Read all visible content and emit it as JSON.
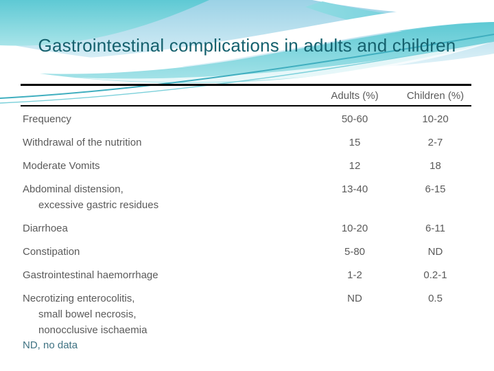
{
  "slide": {
    "title": "Gastrointestinal complications in adults and children",
    "footnote": "ND, no data"
  },
  "table": {
    "columns": [
      "Adults (%)",
      "Children (%)"
    ],
    "rows": [
      {
        "lines": [
          "Frequency"
        ],
        "adults": "50-60",
        "children": "10-20"
      },
      {
        "lines": [
          "Withdrawal of the nutrition"
        ],
        "adults": "15",
        "children": "2-7"
      },
      {
        "lines": [
          "Moderate Vomits"
        ],
        "adults": "12",
        "children": "18"
      },
      {
        "lines": [
          "Abdominal distension,",
          "excessive gastric residues"
        ],
        "adults": "13-40",
        "children": "6-15"
      },
      {
        "lines": [
          "Diarrhoea"
        ],
        "adults": "10-20",
        "children": "6-11"
      },
      {
        "lines": [
          "Constipation"
        ],
        "adults": "5-80",
        "children": "ND"
      },
      {
        "lines": [
          "Gastrointestinal haemorrhage"
        ],
        "adults": "1-2",
        "children": "0.2-1"
      },
      {
        "lines": [
          "Necrotizing enterocolitis,",
          "small bowel necrosis,",
          "nonocclusive ischaemia"
        ],
        "adults": "ND",
        "children": "0.5"
      }
    ]
  },
  "theme": {
    "title_color": "#15616E",
    "body_text_color": "#5A5A5A",
    "footnote_color": "#3E7282",
    "rule_color": "#000000",
    "wave_sky_blue": "#9BD2E6",
    "wave_turquoise": "#5EC9D4",
    "wave_accent_line": "#3FAEBF",
    "wave_white": "#FFFFFF"
  }
}
